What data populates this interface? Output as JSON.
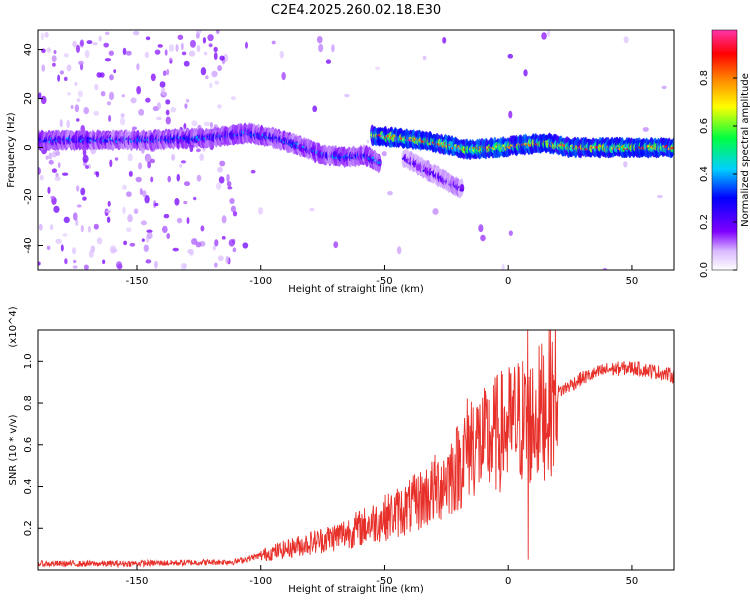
{
  "title": "C2E4.2025.260.02.18.E30",
  "chart_data": [
    {
      "type": "heatmap",
      "name": "spectrogram",
      "xlabel": "Height of straight line (km)",
      "ylabel": "Frequency (Hz)",
      "xlim": [
        -190,
        67
      ],
      "ylim": [
        -50,
        48
      ],
      "xticks": [
        -150,
        -100,
        -50,
        0,
        50
      ],
      "yticks": [
        -40,
        -20,
        0,
        20,
        40
      ],
      "colorbar": {
        "label": "Normalized spectral amplitude",
        "range": [
          0,
          1
        ],
        "ticks": [
          "0.0",
          "0.2",
          "0.4",
          "0.6",
          "0.8"
        ],
        "tick_values": [
          0.0,
          0.2,
          0.4,
          0.6,
          0.8
        ]
      },
      "ridges": [
        {
          "x": [
            -190,
            -150,
            -120,
            -105,
            -95,
            -85,
            -75,
            -65,
            -58,
            -52
          ],
          "y": [
            3,
            3,
            4,
            6,
            4,
            1,
            -3,
            -4,
            -3,
            -6
          ],
          "amp": 0.35
        },
        {
          "x": [
            -55,
            -45,
            -35,
            -25,
            -15,
            -5,
            5,
            15,
            25,
            40,
            55,
            67
          ],
          "y": [
            5,
            4,
            3,
            1,
            -1,
            0,
            1,
            2,
            0,
            0,
            0,
            0
          ],
          "amp": 0.85
        },
        {
          "x": [
            -42,
            -35,
            -28,
            -22,
            -19
          ],
          "y": [
            -4,
            -8,
            -12,
            -15,
            -17
          ],
          "amp": 0.25
        }
      ]
    },
    {
      "type": "line",
      "name": "snr",
      "xlabel": "Height of straight line (km)",
      "ylabel": "SNR (10 * v/v)",
      "scale_note": "(x10^4)",
      "xlim": [
        -190,
        67
      ],
      "ylim": [
        0,
        1.15
      ],
      "xticks": [
        -150,
        -100,
        -50,
        0,
        50
      ],
      "yticks": [
        0.2,
        0.4,
        0.6,
        0.8,
        1.0
      ],
      "ytick_labels": [
        "0.2",
        "0.4",
        "0.6",
        "0.8",
        "1.0"
      ],
      "color": "#e8302a",
      "series": [
        {
          "name": "SNR",
          "x": [
            -190,
            -160,
            -130,
            -110,
            -100,
            -90,
            -80,
            -70,
            -60,
            -50,
            -40,
            -30,
            -20,
            -15,
            -10,
            -5,
            0,
            5,
            8,
            10,
            15,
            20,
            30,
            40,
            50,
            60,
            67
          ],
          "y": [
            0.03,
            0.03,
            0.035,
            0.04,
            0.07,
            0.1,
            0.13,
            0.16,
            0.2,
            0.25,
            0.3,
            0.38,
            0.5,
            0.62,
            0.6,
            0.65,
            0.68,
            0.72,
            0.7,
            0.72,
            0.78,
            0.85,
            0.92,
            0.96,
            0.97,
            0.95,
            0.93
          ]
        }
      ],
      "annotations": [
        {
          "x": 8,
          "peak": 1.15,
          "dip": 0.05
        }
      ]
    }
  ]
}
